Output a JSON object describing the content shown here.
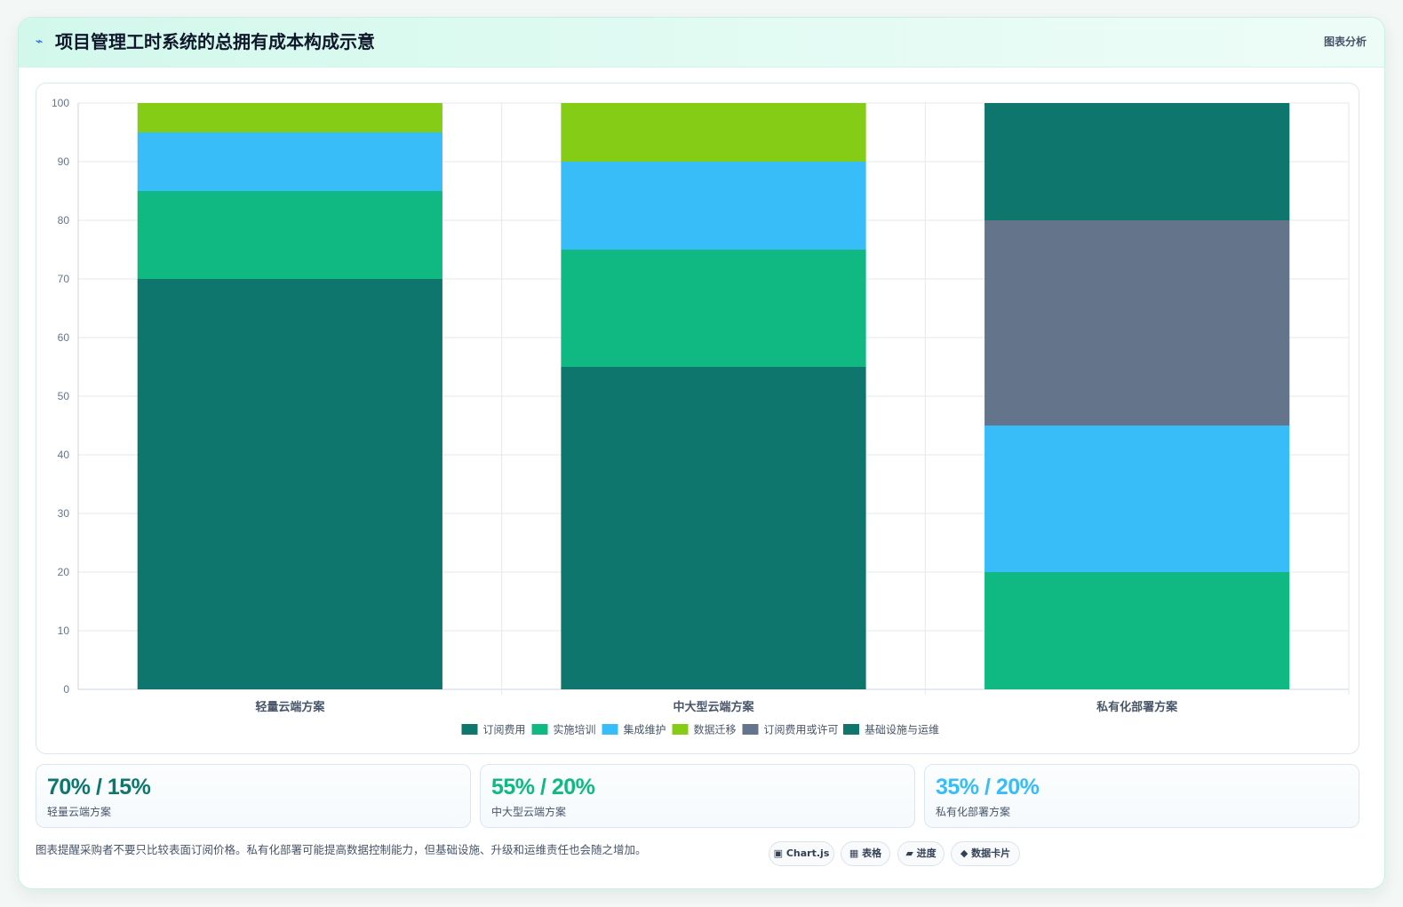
{
  "header": {
    "icon": "lightning-icon",
    "title": "项目管理工时系统的总拥有成本构成示意",
    "tag": "图表分析"
  },
  "chart_data": {
    "type": "bar",
    "stacked": true,
    "categories": [
      "轻量云端方案",
      "中大型云端方案",
      "私有化部署方案"
    ],
    "ylim": [
      0,
      100
    ],
    "yticks": [
      0,
      10,
      20,
      30,
      40,
      50,
      60,
      70,
      80,
      90,
      100
    ],
    "grid": true,
    "legend_position": "bottom",
    "series": [
      {
        "name": "订阅费用",
        "color": "#0f766e",
        "values": [
          70,
          55,
          0
        ]
      },
      {
        "name": "实施培训",
        "color": "#10b981",
        "values": [
          15,
          20,
          20
        ]
      },
      {
        "name": "集成维护",
        "color": "#38bdf8",
        "values": [
          10,
          15,
          25
        ]
      },
      {
        "name": "数据迁移",
        "color": "#84cc16",
        "values": [
          5,
          10,
          0
        ]
      },
      {
        "name": "订阅费用或许可",
        "color": "#64748b",
        "values": [
          0,
          0,
          35
        ]
      },
      {
        "name": "基础设施与运维",
        "color": "#0f766e",
        "values": [
          0,
          0,
          20
        ]
      }
    ]
  },
  "stats": [
    {
      "value": "70% / 15%",
      "label": "轻量云端方案",
      "color": "#0f766e"
    },
    {
      "value": "55% / 20%",
      "label": "中大型云端方案",
      "color": "#10b981"
    },
    {
      "value": "35% / 20%",
      "label": "私有化部署方案",
      "color": "#38bdf8"
    }
  ],
  "footer": {
    "note": "图表提醒采购者不要只比较表面订阅价格。私有化部署可能提高数据控制能力，但基础设施、升级和运维责任也会随之增加。",
    "chips": [
      {
        "icon": "chart-icon",
        "glyph": "▣",
        "label": "Chart.js"
      },
      {
        "icon": "table-icon",
        "glyph": "▦",
        "label": "表格"
      },
      {
        "icon": "progress-icon",
        "glyph": "▰",
        "label": "进度"
      },
      {
        "icon": "diamond-icon",
        "glyph": "◆",
        "label": "数据卡片"
      }
    ]
  }
}
